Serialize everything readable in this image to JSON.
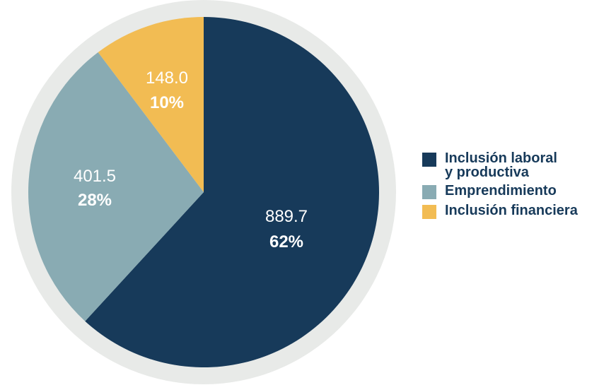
{
  "chart_data": {
    "type": "pie",
    "title": "",
    "legend_position": "right",
    "slices": [
      {
        "key": "laboral",
        "label": "Inclusión laboral\ny productiva",
        "value": 889.7,
        "value_label": "889.7",
        "percent_label": "62%",
        "color": "#173a5a"
      },
      {
        "key": "emprend",
        "label": "Emprendimiento",
        "value": 401.5,
        "value_label": "401.5",
        "percent_label": "28%",
        "color": "#89abb3"
      },
      {
        "key": "financ",
        "label": "Inclusión financiera",
        "value": 148.0,
        "value_label": "148.0",
        "percent_label": "10%",
        "color": "#f2bc53"
      }
    ],
    "ring_color": "#e8eae8",
    "label_color": "#173a5a"
  }
}
